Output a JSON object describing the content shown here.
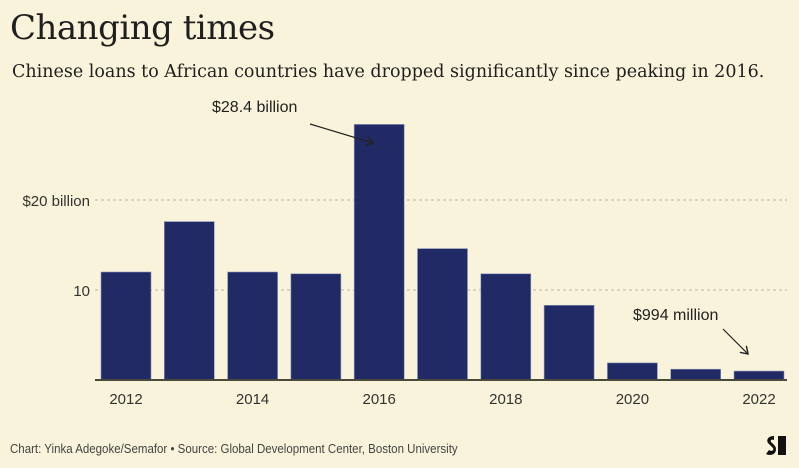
{
  "header": {
    "title": "Changing times",
    "subtitle": "Chinese loans to African countries have dropped significantly since peaking in 2016."
  },
  "footer": {
    "credit": "Chart: Yinka Adegoke/Semafor • Source: Global Development Center, Boston University",
    "logo_icon": "semafor-logo-icon"
  },
  "colors": {
    "background": "#f8f3da",
    "bar": "#222a66",
    "text": "#222222",
    "grid": "#b9b4a0"
  },
  "chart_data": {
    "type": "bar",
    "title": "Changing times",
    "subtitle": "Chinese loans to African countries have dropped significantly since peaking in 2016.",
    "xlabel": "",
    "ylabel": "",
    "categories": [
      "2012",
      "2013",
      "2014",
      "2015",
      "2016",
      "2017",
      "2018",
      "2019",
      "2020",
      "2021",
      "2022"
    ],
    "values": [
      12.0,
      17.6,
      12.0,
      11.8,
      28.4,
      14.6,
      11.8,
      8.3,
      1.9,
      1.2,
      0.994
    ],
    "unit": "billion USD",
    "ylim": [
      0,
      30
    ],
    "yticks": [
      {
        "value": 10,
        "label": "10"
      },
      {
        "value": 20,
        "label": "$20 billion"
      }
    ],
    "xtick_labels": [
      "2012",
      "2014",
      "2016",
      "2018",
      "2020",
      "2022"
    ],
    "grid": true,
    "annotations": [
      {
        "category": "2016",
        "text": "$28.4 billion"
      },
      {
        "category": "2022",
        "text": "$994 million"
      }
    ]
  }
}
